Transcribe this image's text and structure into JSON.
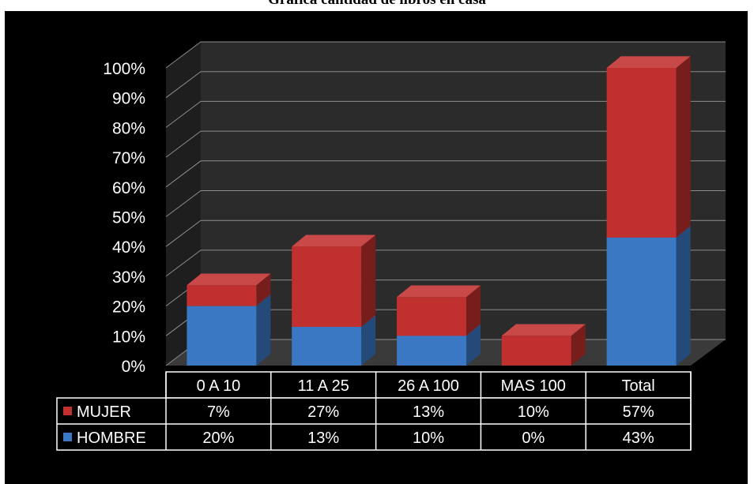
{
  "title": "Grafica cantidad de libros en casa",
  "chart_data": {
    "type": "bar",
    "stacked": true,
    "categories": [
      "0 A 10",
      "11 A 25",
      "26 A 100",
      "MAS  100",
      "Total"
    ],
    "series": [
      {
        "name": "MUJER",
        "values": [
          7,
          27,
          13,
          10,
          57
        ],
        "labels": [
          "7%",
          "27%",
          "13%",
          "10%",
          "57%"
        ],
        "color": "#c0302f"
      },
      {
        "name": "HOMBRE",
        "values": [
          20,
          13,
          10,
          0,
          43
        ],
        "labels": [
          "20%",
          "13%",
          "10%",
          "0%",
          "43%"
        ],
        "color": "#3a78c4"
      }
    ],
    "yticks": [
      "0%",
      "10%",
      "20%",
      "30%",
      "40%",
      "50%",
      "60%",
      "70%",
      "80%",
      "90%",
      "100%"
    ],
    "ylim": [
      0,
      100
    ],
    "grid": true,
    "legend": "data-table",
    "background": "#000000"
  }
}
